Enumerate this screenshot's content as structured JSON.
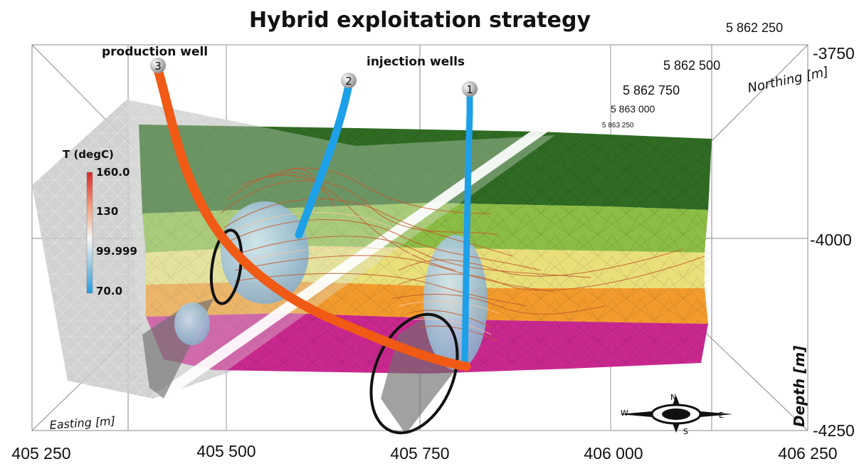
{
  "title": "Hybrid exploitation strategy",
  "labels": {
    "production": "production well",
    "injection": "injection wells"
  },
  "wells": [
    {
      "id": "3",
      "type": "production"
    },
    {
      "id": "2",
      "type": "injection"
    },
    {
      "id": "1",
      "type": "injection"
    }
  ],
  "axes": {
    "easting": {
      "title": "Easting [m]",
      "ticks": [
        "405 250",
        "405 500",
        "405 750",
        "406 000",
        "406 250"
      ]
    },
    "northing": {
      "title": "Northing [m]",
      "ticks": [
        "5 862 250",
        "5 862 500",
        "5 862 750",
        "5 863 000",
        "5 863 250"
      ]
    },
    "depth": {
      "title": "Depth [m]",
      "ticks": [
        "-3750",
        "-4000",
        "-4250"
      ]
    }
  },
  "legend": {
    "title": "T (degC)",
    "ticks": [
      "160.0",
      "130",
      "99.999",
      "70.0"
    ],
    "colors": [
      "#d62728",
      "#f4a582",
      "#f7f7f7",
      "#92c5de",
      "#1f9be0"
    ]
  },
  "layer_colors": {
    "top": "#2f6b23",
    "upper": "#8cbd45",
    "middle": "#e9e07a",
    "lower": "#f29b2c",
    "bottom": "#c8288e"
  },
  "compass": {
    "n": "N",
    "s": "S",
    "e": "E",
    "w": "W"
  }
}
